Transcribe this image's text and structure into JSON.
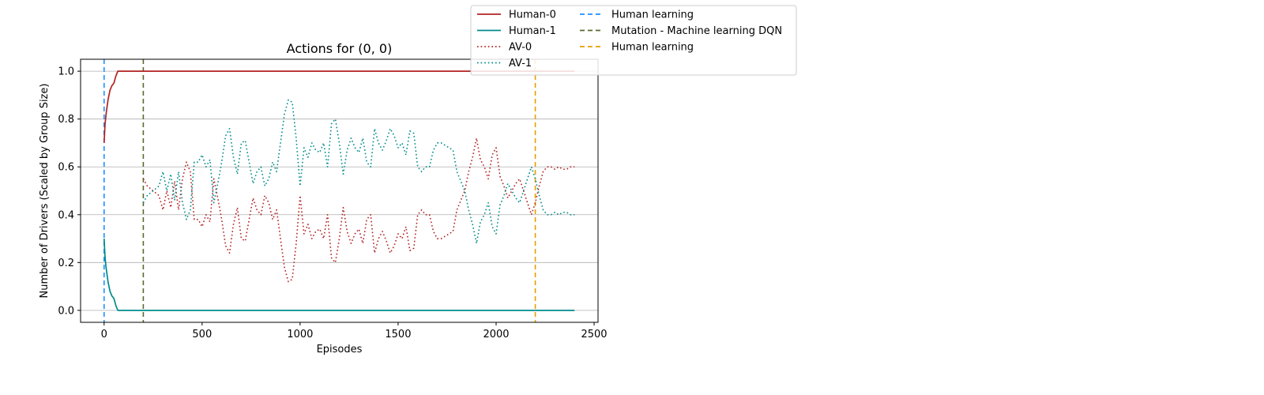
{
  "chart_data": {
    "type": "line",
    "title": "Actions for (0, 0)",
    "xlabel": "Episodes",
    "ylabel": "Number of Drivers (Scaled by Group Size)",
    "xlim": [
      -120,
      2520
    ],
    "ylim": [
      -0.05,
      1.05
    ],
    "xticks": [
      0,
      500,
      1000,
      1500,
      2000,
      2500
    ],
    "xtick_labels": [
      "0",
      "500",
      "1000",
      "1500",
      "2000",
      "2500"
    ],
    "yticks": [
      0.0,
      0.2,
      0.4,
      0.6,
      0.8,
      1.0
    ],
    "ytick_labels": [
      "0.0",
      "0.2",
      "0.4",
      "0.6",
      "0.8",
      "1.0"
    ],
    "grid": "horizontal",
    "legend_position": "top-right, outside",
    "series": [
      {
        "name": "Human-0",
        "color": "#b22222",
        "style": "solid",
        "x": [
          0,
          5,
          10,
          15,
          20,
          30,
          40,
          50,
          60,
          70,
          80,
          100,
          200,
          500,
          1000,
          1500,
          2000,
          2400
        ],
        "y": [
          0.7,
          0.78,
          0.82,
          0.85,
          0.88,
          0.92,
          0.94,
          0.95,
          0.98,
          1.0,
          1.0,
          1.0,
          1.0,
          1.0,
          1.0,
          1.0,
          1.0,
          1.0
        ]
      },
      {
        "name": "Human-1",
        "color": "#008b8b",
        "style": "solid",
        "x": [
          0,
          5,
          10,
          15,
          20,
          30,
          40,
          50,
          60,
          70,
          80,
          100,
          200,
          500,
          1000,
          1500,
          2000,
          2400
        ],
        "y": [
          0.3,
          0.22,
          0.18,
          0.15,
          0.12,
          0.08,
          0.06,
          0.05,
          0.02,
          0.0,
          0.0,
          0.0,
          0.0,
          0.0,
          0.0,
          0.0,
          0.0,
          0.0
        ]
      },
      {
        "name": "AV-0",
        "color": "#b22222",
        "style": "dotted",
        "x": [
          200,
          220,
          250,
          280,
          300,
          320,
          340,
          360,
          380,
          400,
          420,
          440,
          460,
          480,
          500,
          520,
          540,
          560,
          580,
          600,
          620,
          640,
          660,
          680,
          700,
          720,
          740,
          760,
          780,
          800,
          820,
          840,
          860,
          880,
          900,
          920,
          940,
          960,
          980,
          1000,
          1020,
          1040,
          1060,
          1080,
          1100,
          1120,
          1140,
          1160,
          1180,
          1200,
          1220,
          1240,
          1260,
          1280,
          1300,
          1320,
          1340,
          1360,
          1380,
          1400,
          1420,
          1440,
          1460,
          1480,
          1500,
          1520,
          1540,
          1560,
          1580,
          1600,
          1620,
          1640,
          1660,
          1680,
          1700,
          1720,
          1740,
          1760,
          1780,
          1800,
          1820,
          1840,
          1860,
          1880,
          1900,
          1920,
          1940,
          1960,
          1980,
          2000,
          2020,
          2040,
          2060,
          2080,
          2100,
          2120,
          2140,
          2160,
          2180,
          2200,
          2220,
          2240,
          2260,
          2280,
          2300,
          2320,
          2340,
          2360,
          2380,
          2400
        ],
        "y": [
          0.55,
          0.52,
          0.5,
          0.48,
          0.42,
          0.5,
          0.43,
          0.54,
          0.42,
          0.55,
          0.62,
          0.58,
          0.38,
          0.38,
          0.35,
          0.4,
          0.37,
          0.55,
          0.47,
          0.38,
          0.27,
          0.24,
          0.36,
          0.43,
          0.3,
          0.29,
          0.38,
          0.47,
          0.42,
          0.4,
          0.48,
          0.45,
          0.38,
          0.42,
          0.3,
          0.18,
          0.12,
          0.13,
          0.28,
          0.48,
          0.32,
          0.36,
          0.3,
          0.33,
          0.34,
          0.3,
          0.4,
          0.22,
          0.2,
          0.3,
          0.43,
          0.33,
          0.28,
          0.32,
          0.34,
          0.28,
          0.38,
          0.4,
          0.24,
          0.3,
          0.33,
          0.29,
          0.24,
          0.27,
          0.32,
          0.3,
          0.35,
          0.25,
          0.26,
          0.4,
          0.42,
          0.4,
          0.4,
          0.33,
          0.3,
          0.3,
          0.31,
          0.32,
          0.33,
          0.42,
          0.46,
          0.5,
          0.58,
          0.64,
          0.72,
          0.63,
          0.6,
          0.55,
          0.65,
          0.68,
          0.56,
          0.52,
          0.47,
          0.5,
          0.53,
          0.55,
          0.5,
          0.45,
          0.4,
          0.45,
          0.52,
          0.58,
          0.6,
          0.6,
          0.59,
          0.6,
          0.59,
          0.59,
          0.6,
          0.6
        ],
        "clip_to_plot": true
      },
      {
        "name": "AV-1",
        "color": "#008b8b",
        "style": "dotted",
        "x": [
          200,
          220,
          250,
          280,
          300,
          320,
          340,
          360,
          380,
          400,
          420,
          440,
          460,
          480,
          500,
          520,
          540,
          560,
          580,
          600,
          620,
          640,
          660,
          680,
          700,
          720,
          740,
          760,
          780,
          800,
          820,
          840,
          860,
          880,
          900,
          920,
          940,
          960,
          980,
          1000,
          1020,
          1040,
          1060,
          1080,
          1100,
          1120,
          1140,
          1160,
          1180,
          1200,
          1220,
          1240,
          1260,
          1280,
          1300,
          1320,
          1340,
          1360,
          1380,
          1400,
          1420,
          1440,
          1460,
          1480,
          1500,
          1520,
          1540,
          1560,
          1580,
          1600,
          1620,
          1640,
          1660,
          1680,
          1700,
          1720,
          1740,
          1760,
          1780,
          1800,
          1820,
          1840,
          1860,
          1880,
          1900,
          1920,
          1940,
          1960,
          1980,
          2000,
          2020,
          2040,
          2060,
          2080,
          2100,
          2120,
          2140,
          2160,
          2180,
          2200,
          2220,
          2240,
          2260,
          2280,
          2300,
          2320,
          2340,
          2360,
          2380,
          2400
        ],
        "y": [
          0.45,
          0.48,
          0.5,
          0.52,
          0.58,
          0.5,
          0.57,
          0.46,
          0.58,
          0.45,
          0.38,
          0.42,
          0.62,
          0.62,
          0.65,
          0.6,
          0.63,
          0.45,
          0.53,
          0.62,
          0.73,
          0.76,
          0.64,
          0.57,
          0.7,
          0.71,
          0.62,
          0.53,
          0.58,
          0.6,
          0.52,
          0.55,
          0.62,
          0.58,
          0.7,
          0.82,
          0.88,
          0.87,
          0.72,
          0.52,
          0.68,
          0.64,
          0.7,
          0.67,
          0.66,
          0.7,
          0.6,
          0.78,
          0.8,
          0.7,
          0.57,
          0.67,
          0.72,
          0.68,
          0.66,
          0.72,
          0.62,
          0.6,
          0.76,
          0.7,
          0.67,
          0.71,
          0.76,
          0.73,
          0.68,
          0.7,
          0.65,
          0.75,
          0.74,
          0.6,
          0.58,
          0.6,
          0.6,
          0.67,
          0.7,
          0.7,
          0.69,
          0.68,
          0.67,
          0.58,
          0.54,
          0.5,
          0.42,
          0.36,
          0.28,
          0.37,
          0.4,
          0.45,
          0.35,
          0.32,
          0.44,
          0.48,
          0.53,
          0.5,
          0.47,
          0.45,
          0.5,
          0.55,
          0.6,
          0.55,
          0.48,
          0.42,
          0.4,
          0.4,
          0.41,
          0.4,
          0.41,
          0.41,
          0.4,
          0.4
        ],
        "clip_to_plot": true
      }
    ],
    "vlines": [
      {
        "name": "Human learning",
        "x": 0,
        "color": "#1e90ff",
        "style": "dashed"
      },
      {
        "name": "Mutation - Machine learning DQN",
        "x": 200,
        "color": "#556b2f",
        "style": "dashed"
      },
      {
        "name": "Human learning",
        "x": 2200,
        "color": "#e69f00",
        "style": "dashed"
      }
    ],
    "legend": [
      {
        "label": "Human-0",
        "color": "#b22222",
        "style": "solid"
      },
      {
        "label": "Human-1",
        "color": "#008b8b",
        "style": "solid"
      },
      {
        "label": "AV-0",
        "color": "#b22222",
        "style": "dotted"
      },
      {
        "label": "AV-1",
        "color": "#008b8b",
        "style": "dotted"
      },
      {
        "label": "Human learning",
        "color": "#1e90ff",
        "style": "dashed"
      },
      {
        "label": "Mutation - Machine learning DQN",
        "color": "#556b2f",
        "style": "dashed"
      },
      {
        "label": "Human learning",
        "color": "#e69f00",
        "style": "dashed"
      }
    ]
  }
}
